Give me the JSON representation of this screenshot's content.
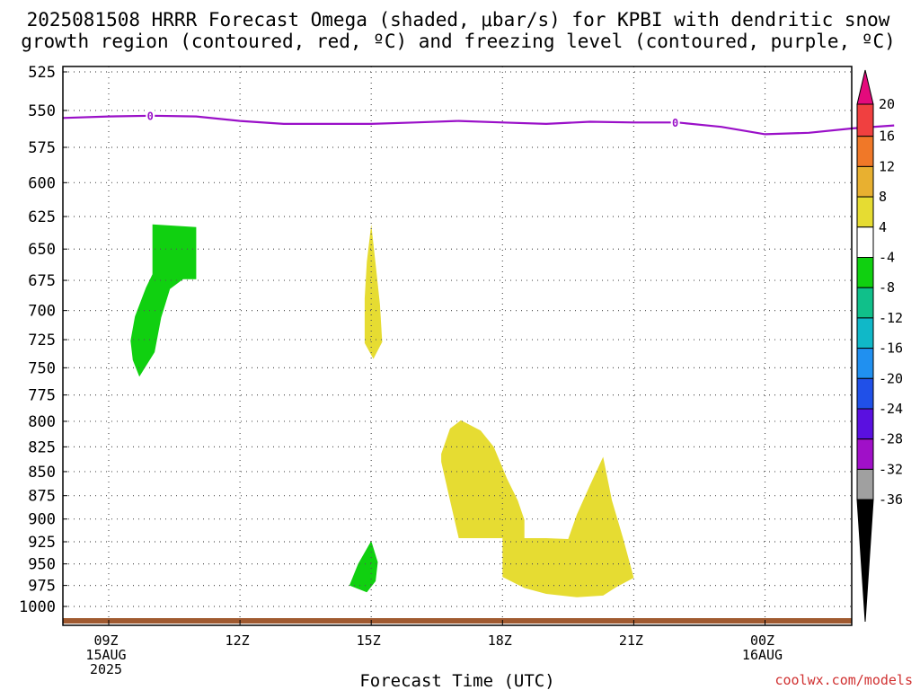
{
  "header": {
    "title_line1": "2025081508 HRRR Forecast Omega (shaded, μbar/s) for KPBI with dendritic snow",
    "title_line2": "growth region (contoured, red, ºC) and freezing level (contoured, purple, ºC)"
  },
  "footer": {
    "credit": "coolwx.com/models"
  },
  "colors": {
    "freezing_level": "#9a10c8",
    "ground": "#a05a30",
    "grid": "#555555"
  },
  "chart_data": {
    "type": "heatmap",
    "title": "2025081508 HRRR Forecast Omega (shaded, μbar/s) for KPBI with dendritic snow growth region (contoured, red, ºC) and freezing level (contoured, purple, ºC)",
    "xlabel": "Forecast Time (UTC)",
    "ylabel": "",
    "xlim": [
      8,
      27
    ],
    "ylim": [
      520,
      1030
    ],
    "y_scale": "log-pressure (inverted)",
    "grid": true,
    "y_ticks": [
      525,
      550,
      575,
      600,
      625,
      650,
      675,
      700,
      725,
      750,
      775,
      800,
      825,
      850,
      875,
      900,
      925,
      950,
      975,
      1000
    ],
    "x_ticks": [
      {
        "x": 9,
        "lines": [
          "09Z",
          "15AUG",
          "2025"
        ]
      },
      {
        "x": 12,
        "lines": [
          "12Z"
        ]
      },
      {
        "x": 15,
        "lines": [
          "15Z"
        ]
      },
      {
        "x": 18,
        "lines": [
          "18Z"
        ]
      },
      {
        "x": 21,
        "lines": [
          "21Z"
        ]
      },
      {
        "x": 24,
        "lines": [
          "00Z",
          "16AUG"
        ]
      }
    ],
    "freezing_level": {
      "label": "0",
      "label_at_x": [
        9.95,
        21.95
      ],
      "points": [
        [
          7.95,
          555
        ],
        [
          9.0,
          554
        ],
        [
          10.0,
          553.5
        ],
        [
          11.0,
          554
        ],
        [
          12.0,
          557
        ],
        [
          13.0,
          559
        ],
        [
          14.0,
          559
        ],
        [
          15.0,
          559
        ],
        [
          16.0,
          558
        ],
        [
          17.0,
          557
        ],
        [
          18.0,
          558
        ],
        [
          19.0,
          559
        ],
        [
          20.0,
          557.5
        ],
        [
          21.0,
          558
        ],
        [
          22.0,
          558
        ],
        [
          23.0,
          561
        ],
        [
          24.0,
          566
        ],
        [
          25.0,
          565
        ],
        [
          26.0,
          562
        ],
        [
          26.95,
          560
        ]
      ]
    },
    "omega_regions": [
      {
        "class": "-8 to -4",
        "color": "#10d010",
        "points": [
          [
            10.0,
            631
          ],
          [
            11.0,
            633
          ],
          [
            11.0,
            674
          ],
          [
            10.7,
            674
          ],
          [
            10.4,
            682
          ],
          [
            10.2,
            706
          ],
          [
            10.05,
            736
          ],
          [
            9.7,
            758
          ],
          [
            9.55,
            743
          ],
          [
            9.5,
            726
          ],
          [
            9.6,
            705
          ],
          [
            9.85,
            681
          ],
          [
            10.0,
            670
          ]
        ]
      },
      {
        "class": "4 to 8",
        "color": "#e6dc32",
        "points": [
          [
            15.0,
            631
          ],
          [
            15.1,
            662
          ],
          [
            15.2,
            695
          ],
          [
            15.25,
            727
          ],
          [
            15.05,
            742
          ],
          [
            14.85,
            728
          ],
          [
            14.85,
            690
          ],
          [
            14.9,
            660
          ]
        ]
      },
      {
        "class": "-8 to -4",
        "color": "#10d010",
        "points": [
          [
            15.0,
            924
          ],
          [
            15.15,
            948
          ],
          [
            15.1,
            970
          ],
          [
            14.9,
            983
          ],
          [
            14.5,
            975
          ],
          [
            14.7,
            950
          ]
        ]
      },
      {
        "class": "4 to 8",
        "color": "#e6dc32",
        "points": [
          [
            16.6,
            832
          ],
          [
            16.8,
            807
          ],
          [
            17.05,
            799
          ],
          [
            17.5,
            809
          ],
          [
            17.8,
            825
          ],
          [
            18.1,
            857
          ],
          [
            18.35,
            880
          ],
          [
            18.5,
            901
          ],
          [
            18.5,
            921
          ],
          [
            19.0,
            921
          ],
          [
            19.5,
            922
          ],
          [
            19.7,
            895
          ],
          [
            20.0,
            864
          ],
          [
            20.3,
            835
          ],
          [
            20.5,
            880
          ],
          [
            20.75,
            920
          ],
          [
            21.0,
            966
          ],
          [
            20.6,
            977
          ],
          [
            20.3,
            987
          ],
          [
            19.7,
            989
          ],
          [
            19.0,
            985
          ],
          [
            18.5,
            978
          ],
          [
            18.0,
            965
          ],
          [
            18.0,
            921
          ],
          [
            17.5,
            921
          ],
          [
            17.0,
            921
          ],
          [
            16.8,
            880
          ],
          [
            16.6,
            840
          ]
        ]
      }
    ],
    "ground_line": {
      "pressure": 1013
    },
    "colorbar": {
      "labels": [
        "20",
        "16",
        "12",
        "8",
        "4",
        "-4",
        "-8",
        "-12",
        "-16",
        "-20",
        "-24",
        "-28",
        "-32",
        "-36"
      ],
      "segments": [
        "#e40a7c",
        "#f04040",
        "#f07828",
        "#e8b030",
        "#e6dc32",
        "#ffffff",
        "#10d010",
        "#10c08a",
        "#10b8c8",
        "#2090f0",
        "#2050e8",
        "#5a10e0",
        "#a010c8",
        "#a0a0a0",
        "#000000"
      ]
    }
  }
}
